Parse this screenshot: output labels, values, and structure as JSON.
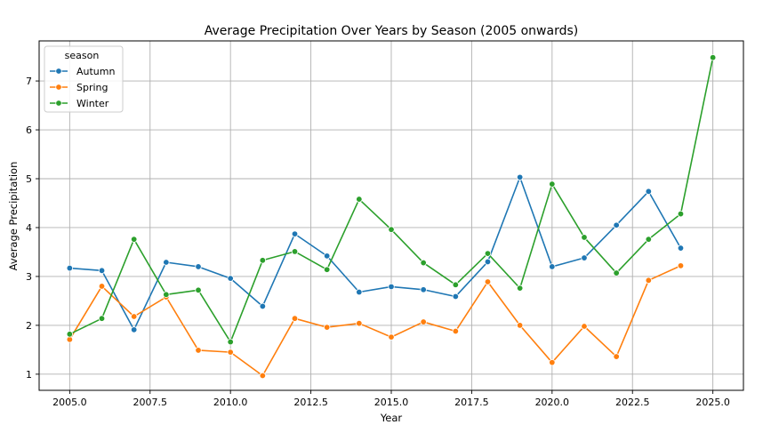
{
  "chart_data": {
    "type": "line",
    "title": "Average Precipitation Over Years by Season (2005 onwards)",
    "xlabel": "Year",
    "ylabel": "Average Precipitation",
    "xlim": [
      2004.05,
      2025.95
    ],
    "ylim": [
      0.67,
      7.82
    ],
    "x_ticks": [
      2005.0,
      2007.5,
      2010.0,
      2012.5,
      2015.0,
      2017.5,
      2020.0,
      2022.5,
      2025.0
    ],
    "x_tick_labels": [
      "2005.0",
      "2007.5",
      "2010.0",
      "2012.5",
      "2015.0",
      "2017.5",
      "2020.0",
      "2022.5",
      "2025.0"
    ],
    "y_ticks": [
      1,
      2,
      3,
      4,
      5,
      6,
      7
    ],
    "y_tick_labels": [
      "1",
      "2",
      "3",
      "4",
      "5",
      "6",
      "7"
    ],
    "grid": true,
    "legend": {
      "title": "season",
      "placement": "top-left"
    },
    "series": [
      {
        "name": "Autumn",
        "color": "#1f77b4",
        "x": [
          2005,
          2006,
          2007,
          2008,
          2009,
          2010,
          2011,
          2012,
          2013,
          2014,
          2015,
          2016,
          2017,
          2018,
          2019,
          2020,
          2021,
          2022,
          2023,
          2024
        ],
        "y": [
          3.17,
          3.12,
          1.91,
          3.29,
          3.2,
          2.96,
          2.39,
          3.87,
          3.42,
          2.68,
          2.79,
          2.73,
          2.59,
          3.3,
          5.03,
          3.2,
          3.38,
          4.05,
          4.74,
          3.58
        ]
      },
      {
        "name": "Spring",
        "color": "#ff7f0e",
        "x": [
          2005,
          2006,
          2007,
          2008,
          2009,
          2010,
          2011,
          2012,
          2013,
          2014,
          2015,
          2016,
          2017,
          2018,
          2019,
          2020,
          2021,
          2022,
          2023,
          2024
        ],
        "y": [
          1.71,
          2.8,
          2.18,
          2.58,
          1.49,
          1.45,
          0.97,
          2.14,
          1.96,
          2.04,
          1.76,
          2.07,
          1.88,
          2.89,
          2.0,
          1.24,
          1.98,
          1.36,
          2.92,
          3.22
        ]
      },
      {
        "name": "Winter",
        "color": "#2ca02c",
        "x": [
          2005,
          2006,
          2007,
          2008,
          2009,
          2010,
          2011,
          2012,
          2013,
          2014,
          2015,
          2016,
          2017,
          2018,
          2019,
          2020,
          2021,
          2022,
          2023,
          2024,
          2025
        ],
        "y": [
          1.82,
          2.14,
          3.76,
          2.63,
          2.72,
          1.66,
          3.33,
          3.51,
          3.14,
          4.58,
          3.96,
          3.28,
          2.83,
          3.47,
          2.76,
          4.89,
          3.8,
          3.07,
          3.76,
          4.28,
          7.48
        ]
      }
    ]
  }
}
